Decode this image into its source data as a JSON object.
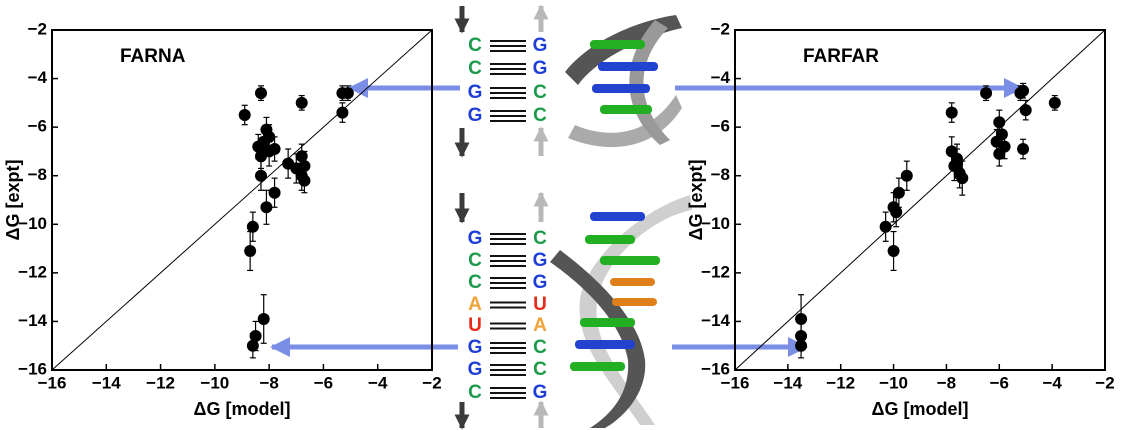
{
  "chart_data": [
    {
      "type": "scatter",
      "annotation": "FARNA",
      "x_label": "ΔG [model]",
      "y_label": "ΔG [expt]",
      "xlim": [
        -16,
        -2
      ],
      "ylim": [
        -16,
        -2
      ],
      "xticks": [
        {
          "value": -16,
          "label": "−16"
        },
        {
          "value": -14,
          "label": "−14"
        },
        {
          "value": -12,
          "label": "−12"
        },
        {
          "value": -10,
          "label": "−10"
        },
        {
          "value": -8,
          "label": "−8"
        },
        {
          "value": -6,
          "label": "−6"
        },
        {
          "value": -4,
          "label": "−4"
        },
        {
          "value": -2,
          "label": "−2"
        }
      ],
      "yticks": [
        {
          "value": -16,
          "label": "−16"
        },
        {
          "value": -14,
          "label": "−14"
        },
        {
          "value": -12,
          "label": "−12"
        },
        {
          "value": -10,
          "label": "−10"
        },
        {
          "value": -8,
          "label": "−8"
        },
        {
          "value": -6,
          "label": "−6"
        },
        {
          "value": -4,
          "label": "−4"
        },
        {
          "value": -2,
          "label": "−2"
        }
      ],
      "identity_line": true,
      "color": "#000000",
      "x": [
        -8.3,
        -8.9,
        -5.3,
        -5.1,
        -5.3,
        -6.8,
        -8.1,
        -8.0,
        -8.2,
        -8.4,
        -8.0,
        -8.3,
        -7.8,
        -7.3,
        -7.0,
        -6.8,
        -6.7,
        -6.8,
        -6.7,
        -8.3,
        -7.8,
        -8.1,
        -8.6,
        -8.7,
        -8.2,
        -8.5,
        -8.6
      ],
      "values": [
        -4.6,
        -5.5,
        -4.6,
        -4.6,
        -5.4,
        -5.0,
        -6.1,
        -6.4,
        -6.6,
        -6.8,
        -7.0,
        -7.2,
        -6.9,
        -7.5,
        -7.7,
        -7.2,
        -7.6,
        -8.0,
        -8.2,
        -8.0,
        -8.7,
        -9.3,
        -10.1,
        -11.1,
        -13.9,
        -14.6,
        -15.0
      ],
      "yerr": [
        0.3,
        0.4,
        0.3,
        0.3,
        0.4,
        0.3,
        0.5,
        0.5,
        0.5,
        0.5,
        0.6,
        0.5,
        0.5,
        0.6,
        0.6,
        0.5,
        0.6,
        0.6,
        0.5,
        0.6,
        0.6,
        0.7,
        0.6,
        0.8,
        1.0,
        0.6,
        0.5
      ]
    },
    {
      "type": "scatter",
      "annotation": "FARFAR",
      "x_label": "ΔG [model]",
      "y_label": "ΔG [expt]",
      "xlim": [
        -16,
        -2
      ],
      "ylim": [
        -16,
        -2
      ],
      "xticks": [
        {
          "value": -16,
          "label": "−16"
        },
        {
          "value": -14,
          "label": "−14"
        },
        {
          "value": -12,
          "label": "−12"
        },
        {
          "value": -10,
          "label": "−10"
        },
        {
          "value": -8,
          "label": "−8"
        },
        {
          "value": -6,
          "label": "−6"
        },
        {
          "value": -4,
          "label": "−4"
        },
        {
          "value": -2,
          "label": "−2"
        }
      ],
      "yticks": [
        {
          "value": -16,
          "label": "−16"
        },
        {
          "value": -14,
          "label": "−14"
        },
        {
          "value": -12,
          "label": "−12"
        },
        {
          "value": -10,
          "label": "−10"
        },
        {
          "value": -8,
          "label": "−8"
        },
        {
          "value": -6,
          "label": "−6"
        },
        {
          "value": -4,
          "label": "−4"
        },
        {
          "value": -2,
          "label": "−2"
        }
      ],
      "identity_line": true,
      "color": "#000000",
      "x": [
        -5.2,
        -5.1,
        -6.5,
        -3.9,
        -5.0,
        -7.8,
        -6.0,
        -5.9,
        -6.1,
        -5.8,
        -6.0,
        -5.1,
        -7.8,
        -7.6,
        -7.7,
        -7.5,
        -7.4,
        -7.6,
        -9.5,
        -9.8,
        -10.0,
        -9.9,
        -10.3,
        -10.0,
        -13.5,
        -13.5,
        -13.5
      ],
      "values": [
        -4.6,
        -4.5,
        -4.6,
        -5.0,
        -5.3,
        -5.4,
        -5.8,
        -6.3,
        -6.6,
        -6.8,
        -7.1,
        -6.9,
        -7.0,
        -7.3,
        -7.6,
        -7.9,
        -8.1,
        -7.5,
        -8.0,
        -8.7,
        -9.3,
        -9.5,
        -10.1,
        -11.1,
        -13.9,
        -14.6,
        -15.0
      ],
      "yerr": [
        0.3,
        0.3,
        0.3,
        0.3,
        0.4,
        0.4,
        0.5,
        0.5,
        0.5,
        0.5,
        0.5,
        0.4,
        0.6,
        0.6,
        0.6,
        0.6,
        0.7,
        0.6,
        0.6,
        0.6,
        0.6,
        0.6,
        0.6,
        0.8,
        1.0,
        0.6,
        0.5
      ]
    }
  ],
  "diagram": {
    "base_colors": {
      "G": "#1d3fd8",
      "C": "#1b9a4a",
      "A": "#f2a23a",
      "U": "#e52a1a"
    },
    "helix1_left": [
      "C",
      "C",
      "G",
      "G"
    ],
    "helix1_right": [
      "G",
      "G",
      "C",
      "C"
    ],
    "helix2_left": [
      "G",
      "C",
      "C",
      "A",
      "U",
      "G",
      "G",
      "C"
    ],
    "helix2_right": [
      "C",
      "G",
      "G",
      "U",
      "A",
      "C",
      "C",
      "G"
    ]
  }
}
